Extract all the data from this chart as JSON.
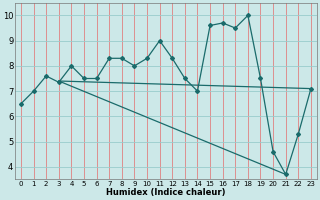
{
  "xlabel": "Humidex (Indice chaleur)",
  "xlim": [
    -0.5,
    23.5
  ],
  "ylim": [
    3.5,
    10.5
  ],
  "yticks": [
    4,
    5,
    6,
    7,
    8,
    9,
    10
  ],
  "xticks": [
    0,
    1,
    2,
    3,
    4,
    5,
    6,
    7,
    8,
    9,
    10,
    11,
    12,
    13,
    14,
    15,
    16,
    17,
    18,
    19,
    20,
    21,
    22,
    23
  ],
  "bg_color": "#cce8e8",
  "line_color": "#1a6b6b",
  "grid_color_v": "#e08080",
  "grid_color_h": "#99cccc",
  "line1_x": [
    0,
    1,
    2,
    3,
    4,
    5,
    6,
    7,
    8,
    9,
    10,
    11,
    12,
    13,
    14,
    15,
    16,
    17,
    18,
    19,
    20,
    21,
    22,
    23
  ],
  "line1_y": [
    6.5,
    7.0,
    7.6,
    7.35,
    8.0,
    7.5,
    7.5,
    8.3,
    8.3,
    8.0,
    8.3,
    9.0,
    8.3,
    7.5,
    7.0,
    9.6,
    9.7,
    9.5,
    10.0,
    7.5,
    4.6,
    3.7,
    5.3,
    7.1
  ],
  "line2_x": [
    3,
    23
  ],
  "line2_y": [
    7.4,
    7.1
  ],
  "line3_x": [
    3,
    21
  ],
  "line3_y": [
    7.4,
    3.7
  ]
}
